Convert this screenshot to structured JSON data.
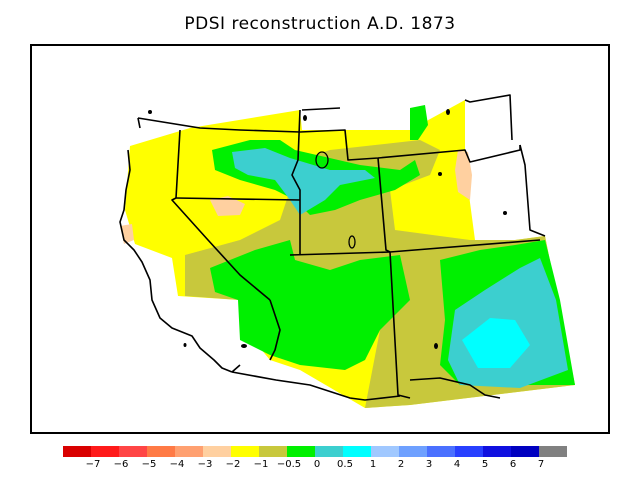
{
  "title": "PDSI reconstruction A.D. 1873",
  "map": {
    "region": "Western United States",
    "variable": "PDSI"
  },
  "legend": {
    "colors": [
      "#d90000",
      "#ff1a1a",
      "#ff4545",
      "#ff7a45",
      "#ffa070",
      "#ffd0a0",
      "#ffff00",
      "#c8c83c",
      "#00f000",
      "#3ccfcf",
      "#00ffff",
      "#a0c8ff",
      "#6ea0ff",
      "#4a70ff",
      "#2840ff",
      "#1010e0",
      "#0000c0",
      "#808080"
    ],
    "ticks": [
      "−7",
      "−6",
      "−5",
      "−4",
      "−3",
      "−2",
      "−1",
      "−0.5",
      "0",
      "0.5",
      "1",
      "2",
      "3",
      "4",
      "5",
      "6",
      "7"
    ]
  }
}
